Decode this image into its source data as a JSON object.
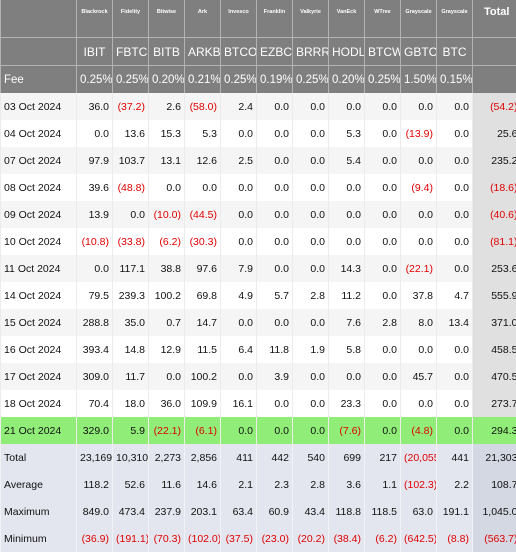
{
  "table": {
    "issuers": [
      "Blackrock",
      "Fidelity",
      "Bitwise",
      "Ark",
      "Invesco",
      "Franklin",
      "Valkyrie",
      "VanEck",
      "WTree",
      "Grayscale",
      "Grayscale"
    ],
    "total_label": "Total",
    "tickers": [
      "IBIT",
      "FBTC",
      "BITB",
      "ARKB",
      "BTCO",
      "EZBC",
      "BRRR",
      "HODL",
      "BTCW",
      "GBTC",
      "BTC"
    ],
    "fee_label": "Fee",
    "fees": [
      "0.25%",
      "0.25%",
      "0.20%",
      "0.21%",
      "0.25%",
      "0.19%",
      "0.25%",
      "0.20%",
      "0.25%",
      "1.50%",
      "0.15%"
    ],
    "rows": [
      {
        "date": "03 Oct 2024",
        "values": [
          "36.0",
          "(37.2)",
          "2.6",
          "(58.0)",
          "2.4",
          "0.0",
          "0.0",
          "0.0",
          "0.0",
          "0.0",
          "0.0"
        ],
        "total": "(54.2)"
      },
      {
        "date": "04 Oct 2024",
        "values": [
          "0.0",
          "13.6",
          "15.3",
          "5.3",
          "0.0",
          "0.0",
          "0.0",
          "5.3",
          "0.0",
          "(13.9)",
          "0.0"
        ],
        "total": "25.6"
      },
      {
        "date": "07 Oct 2024",
        "values": [
          "97.9",
          "103.7",
          "13.1",
          "12.6",
          "2.5",
          "0.0",
          "0.0",
          "5.4",
          "0.0",
          "0.0",
          "0.0"
        ],
        "total": "235.2"
      },
      {
        "date": "08 Oct 2024",
        "values": [
          "39.6",
          "(48.8)",
          "0.0",
          "0.0",
          "0.0",
          "0.0",
          "0.0",
          "0.0",
          "0.0",
          "(9.4)",
          "0.0"
        ],
        "total": "(18.6)"
      },
      {
        "date": "09 Oct 2024",
        "values": [
          "13.9",
          "0.0",
          "(10.0)",
          "(44.5)",
          "0.0",
          "0.0",
          "0.0",
          "0.0",
          "0.0",
          "0.0",
          "0.0"
        ],
        "total": "(40.6)"
      },
      {
        "date": "10 Oct 2024",
        "values": [
          "(10.8)",
          "(33.8)",
          "(6.2)",
          "(30.3)",
          "0.0",
          "0.0",
          "0.0",
          "0.0",
          "0.0",
          "0.0",
          "0.0"
        ],
        "total": "(81.1)"
      },
      {
        "date": "11 Oct 2024",
        "values": [
          "0.0",
          "117.1",
          "38.8",
          "97.6",
          "7.9",
          "0.0",
          "0.0",
          "14.3",
          "0.0",
          "(22.1)",
          "0.0"
        ],
        "total": "253.6"
      },
      {
        "date": "14 Oct 2024",
        "values": [
          "79.5",
          "239.3",
          "100.2",
          "69.8",
          "4.9",
          "5.7",
          "2.8",
          "11.2",
          "0.0",
          "37.8",
          "4.7"
        ],
        "total": "555.9"
      },
      {
        "date": "15 Oct 2024",
        "values": [
          "288.8",
          "35.0",
          "0.7",
          "14.7",
          "0.0",
          "0.0",
          "0.0",
          "7.6",
          "2.8",
          "8.0",
          "13.4"
        ],
        "total": "371.0"
      },
      {
        "date": "16 Oct 2024",
        "values": [
          "393.4",
          "14.8",
          "12.9",
          "11.5",
          "6.4",
          "11.8",
          "1.9",
          "5.8",
          "0.0",
          "0.0",
          "0.0"
        ],
        "total": "458.5"
      },
      {
        "date": "17 Oct 2024",
        "values": [
          "309.0",
          "11.7",
          "0.0",
          "100.2",
          "0.0",
          "3.9",
          "0.0",
          "0.0",
          "0.0",
          "45.7",
          "0.0"
        ],
        "total": "470.5"
      },
      {
        "date": "18 Oct 2024",
        "values": [
          "70.4",
          "18.0",
          "36.0",
          "109.9",
          "16.1",
          "0.0",
          "0.0",
          "23.3",
          "0.0",
          "0.0",
          "0.0"
        ],
        "total": "273.7"
      },
      {
        "date": "21 Oct 2024",
        "values": [
          "329.0",
          "5.9",
          "(22.1)",
          "(6.1)",
          "0.0",
          "0.0",
          "0.0",
          "(7.6)",
          "0.0",
          "(4.8)",
          "0.0"
        ],
        "total": "294.3",
        "highlight": true
      }
    ],
    "summary": [
      {
        "label": "Total",
        "values": [
          "23,169",
          "10,310",
          "2,273",
          "2,856",
          "411",
          "442",
          "540",
          "699",
          "217",
          "(20,055)",
          "441"
        ],
        "total": "21,303"
      },
      {
        "label": "Average",
        "values": [
          "118.2",
          "52.6",
          "11.6",
          "14.6",
          "2.1",
          "2.3",
          "2.8",
          "3.6",
          "1.1",
          "(102.3)",
          "2.2"
        ],
        "total": "108.7"
      },
      {
        "label": "Maximum",
        "values": [
          "849.0",
          "473.4",
          "237.9",
          "203.1",
          "63.4",
          "60.9",
          "43.4",
          "118.8",
          "118.5",
          "63.0",
          "191.1"
        ],
        "total": "1,045.0"
      },
      {
        "label": "Minimum",
        "values": [
          "(36.9)",
          "(191.1)",
          "(70.3)",
          "(102.0)",
          "(37.5)",
          "(23.0)",
          "(20.2)",
          "(38.4)",
          "(6.2)",
          "(642.5)",
          "(8.8)"
        ],
        "total": "(563.7)"
      }
    ]
  },
  "colors": {
    "header_bg": "#7f7f7f",
    "negative": "#e00000",
    "highlight_row": "#90ee78",
    "summary_bg": "#e3e6ef"
  }
}
